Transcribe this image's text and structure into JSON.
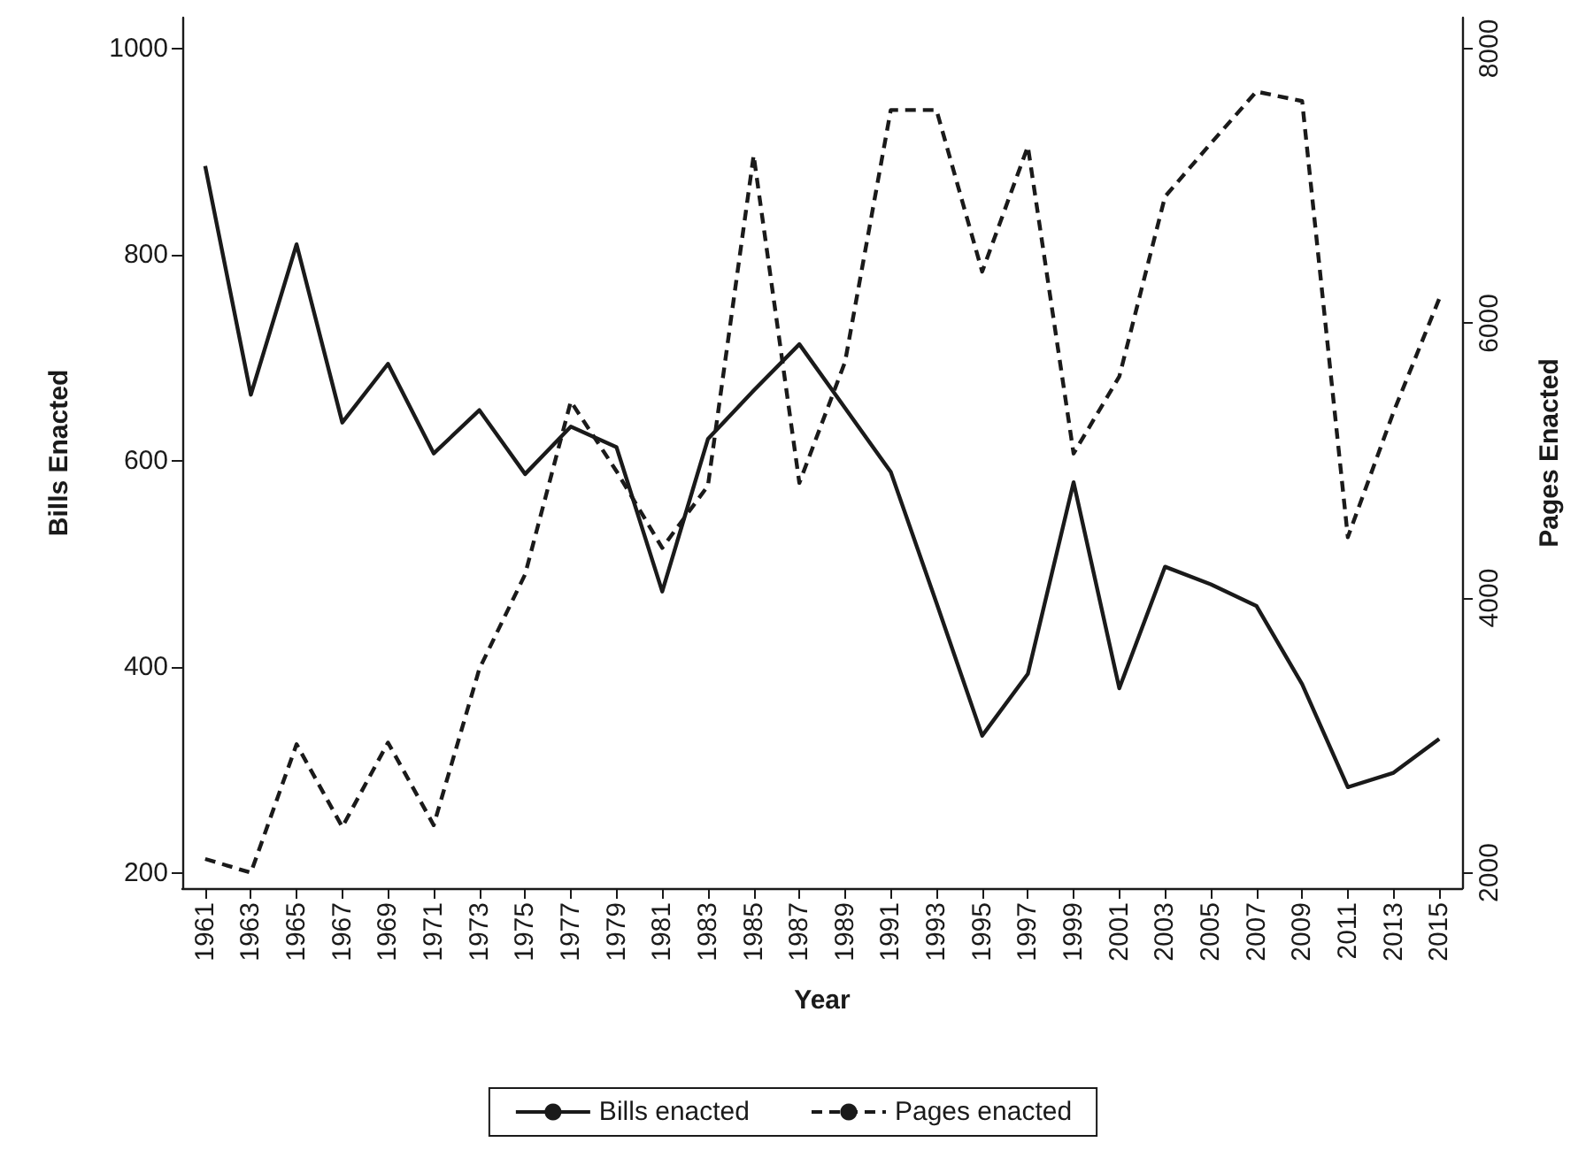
{
  "chart_data": {
    "type": "line",
    "xlabel": "Year",
    "ylabel": "Bills Enacted",
    "y2label": "Pages Enacted",
    "x": [
      1961,
      1963,
      1965,
      1967,
      1969,
      1971,
      1973,
      1975,
      1977,
      1979,
      1981,
      1983,
      1985,
      1987,
      1989,
      1991,
      1993,
      1995,
      1997,
      1999,
      2001,
      2003,
      2005,
      2007,
      2009,
      2011,
      2013,
      2015
    ],
    "series": [
      {
        "name": "Bills enacted",
        "color": "#1a1a1a",
        "line_style": "solid",
        "values": [
          886,
          664,
          810,
          637,
          694,
          607,
          649,
          587,
          633,
          613,
          473,
          621,
          668,
          713,
          651,
          589,
          462,
          333,
          393,
          579,
          379,
          497,
          480,
          459,
          383,
          283,
          297,
          330
        ]
      },
      {
        "name": "Pages enacted",
        "color": "#1a1a1a",
        "line_style": "dashed",
        "axis": "y2",
        "values": [
          2100,
          2000,
          2935,
          2333,
          2947,
          2346,
          3485,
          4172,
          5431,
          4923,
          4365,
          4817,
          7223,
          4838,
          5719,
          7553,
          7553,
          6376,
          7288,
          5052,
          5612,
          6922,
          7309,
          7687,
          7618,
          4443,
          5354,
          6179
        ]
      }
    ],
    "xlim": [
      1960,
      2016
    ],
    "xticks": [
      1961,
      1963,
      1965,
      1967,
      1969,
      1971,
      1973,
      1975,
      1977,
      1979,
      1981,
      1983,
      1985,
      1987,
      1989,
      1991,
      1993,
      1995,
      1997,
      1999,
      2001,
      2003,
      2005,
      2007,
      2009,
      2011,
      2013,
      2015
    ],
    "ylim": [
      185,
      1030
    ],
    "yticks": [
      200,
      400,
      600,
      800,
      1000
    ],
    "y2lim": [
      1887.5,
      8225
    ],
    "y2ticks": [
      2000,
      4000,
      6000,
      8000
    ],
    "grid": false,
    "legend": "bottom",
    "marker": "none"
  }
}
